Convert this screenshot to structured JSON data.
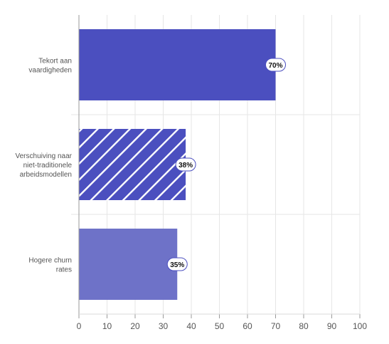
{
  "chart_data": {
    "type": "bar",
    "orientation": "horizontal",
    "categories": [
      "Tekort aan vaardigheden",
      "Verschuiving naar niet-traditionele arbeidsmodellen",
      "Hogere churn rates"
    ],
    "category_label_lines": [
      [
        "Tekort aan",
        "vaardigheden"
      ],
      [
        "Verschuiving naar",
        "niet-traditionele",
        "arbeidsmodellen"
      ],
      [
        "Hogere churn",
        "rates"
      ]
    ],
    "values": [
      70,
      38,
      35
    ],
    "data_labels": [
      "70%",
      "38%",
      "35%"
    ],
    "bar_styles": [
      "solid",
      "hatched",
      "solid-light"
    ],
    "bar_colors": [
      "#4b4fbf",
      "#4b4fbf",
      "#6e72c8"
    ],
    "xlim": [
      0,
      100
    ],
    "x_ticks": [
      0,
      10,
      20,
      30,
      40,
      50,
      60,
      70,
      80,
      90,
      100
    ],
    "grid": true,
    "title": "",
    "xlabel": "",
    "ylabel": ""
  }
}
